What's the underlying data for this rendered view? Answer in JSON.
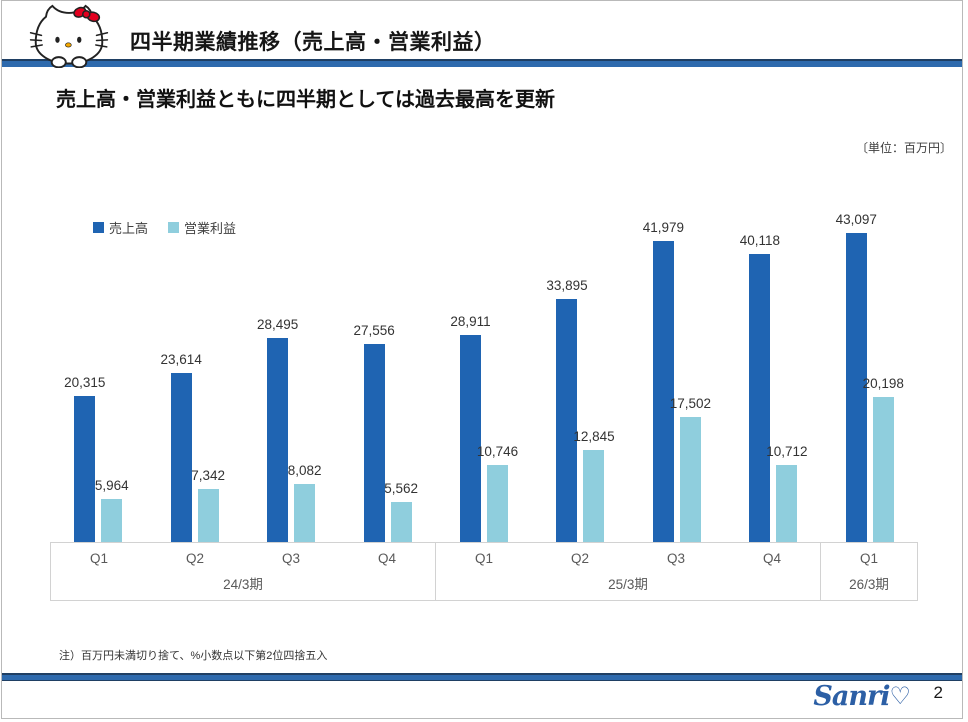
{
  "header": {
    "title": "四半期業績推移（売上高・営業利益）",
    "subtitle": "売上高・営業利益ともに四半期としては過去最高を更新"
  },
  "unit_label": "〔単位：百万円〕",
  "legend": [
    {
      "label": "売上高",
      "color": "#1f64b2"
    },
    {
      "label": "営業利益",
      "color": "#8fcedd"
    }
  ],
  "chart_data": {
    "type": "bar",
    "categories": [
      "Q1",
      "Q2",
      "Q3",
      "Q4",
      "Q1",
      "Q2",
      "Q3",
      "Q4",
      "Q1"
    ],
    "periods": [
      {
        "label": "24/3期",
        "count": 4
      },
      {
        "label": "25/3期",
        "count": 4
      },
      {
        "label": "26/3期",
        "count": 1
      }
    ],
    "series": [
      {
        "name": "売上高",
        "color": "#1f64b2",
        "values": [
          20315,
          23614,
          28495,
          27556,
          28911,
          33895,
          41979,
          40118,
          43097
        ]
      },
      {
        "name": "営業利益",
        "color": "#8fcedd",
        "values": [
          5964,
          7342,
          8082,
          5562,
          10746,
          12845,
          17502,
          10712,
          20198
        ]
      }
    ],
    "unit": "百万円",
    "ylim": [
      0,
      45000
    ],
    "grid": false,
    "legend_position": "top-left",
    "value_labels": true
  },
  "footnote": "注）百万円未満切り捨て、%小数点以下第2位四捨五入",
  "footer": {
    "logo_text": "Sanri",
    "logo_heart": "♡",
    "page_number": "2"
  },
  "colors": {
    "rule_bar": "#2e6aad",
    "rule_edge": "#1f3f63",
    "revenue_bar": "#1f64b2",
    "profit_bar": "#8fcedd",
    "axis_text": "#595959",
    "value_text": "#333333",
    "brand_blue": "#2c5fa5"
  }
}
